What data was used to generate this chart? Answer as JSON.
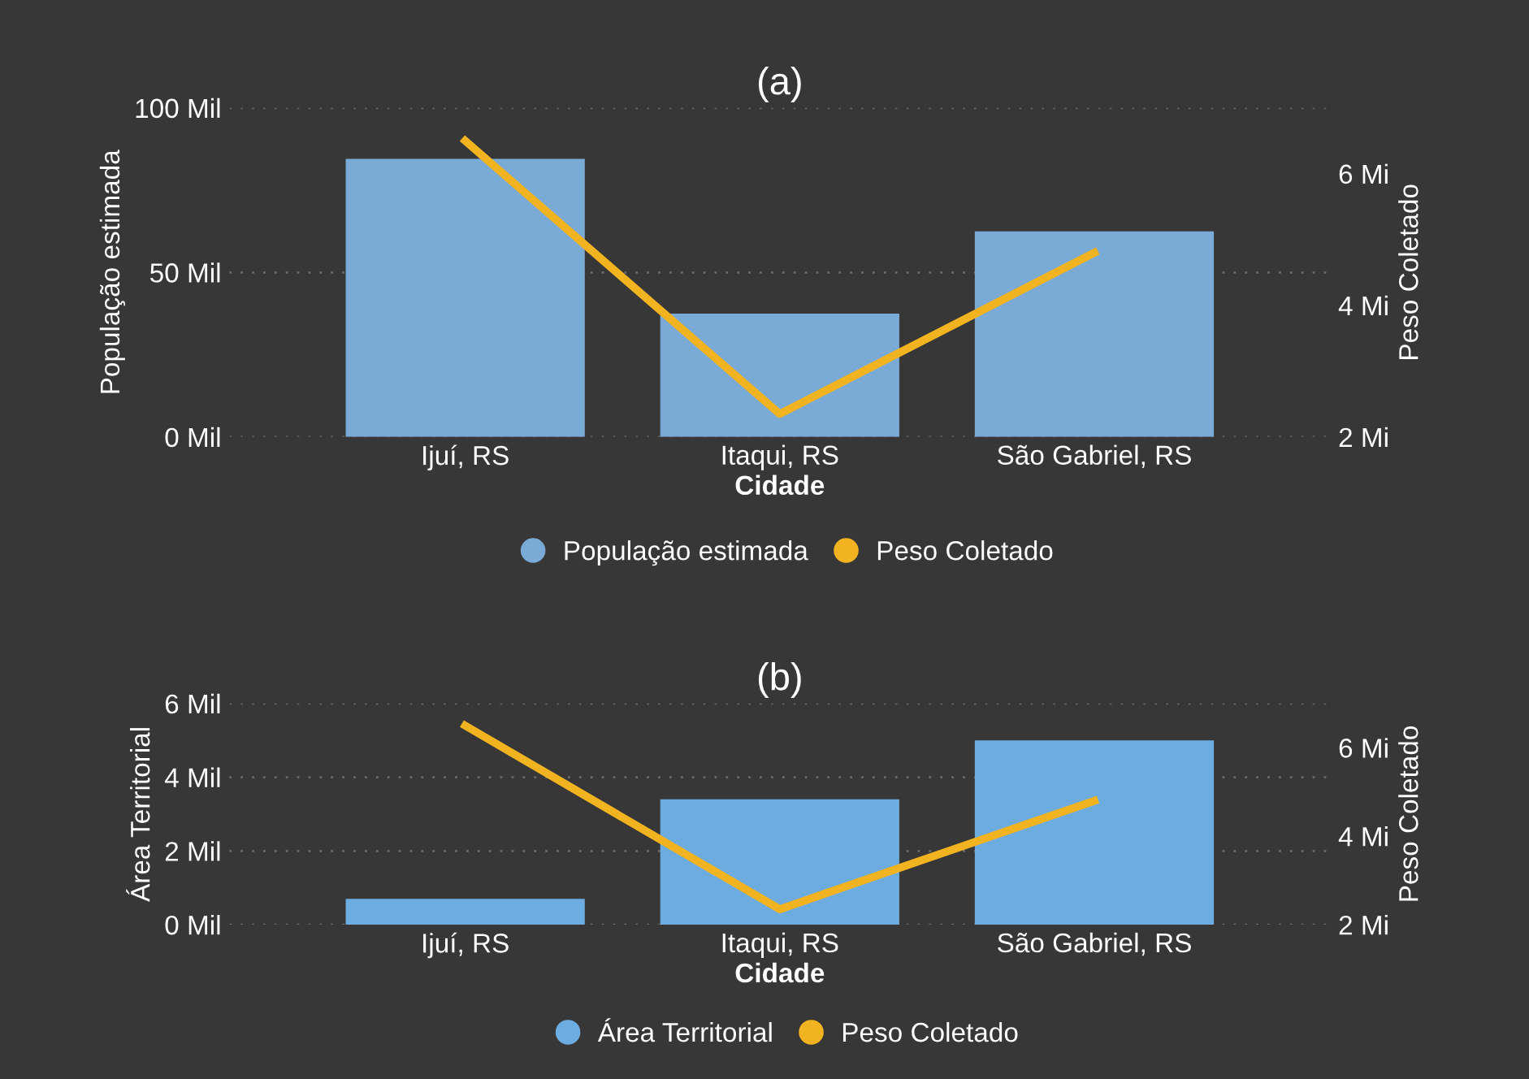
{
  "chart_data": [
    {
      "type": "bar",
      "title": "(a)",
      "xlabel": "Cidade",
      "ylabel": "População estimada",
      "y2label": "Peso Coletado",
      "categories": [
        "Ijuí, RS",
        "Itaqui, RS",
        "São Gabriel, RS"
      ],
      "series": [
        {
          "name": "População estimada",
          "color": "#7aaad6",
          "values": [
            84.5,
            37.5,
            62.5
          ]
        },
        {
          "name": "Peso Coletado",
          "type": "line",
          "axis": "y2",
          "color": "#f2b320",
          "values": [
            6.5,
            2.35,
            4.8
          ]
        }
      ],
      "ylim": [
        0,
        100
      ],
      "yticks": [
        {
          "value": 0,
          "label": "0 Mil"
        },
        {
          "value": 50,
          "label": "50 Mil"
        },
        {
          "value": 100,
          "label": "100 Mil"
        }
      ],
      "y2lim": [
        2,
        7
      ],
      "y2ticks": [
        {
          "value": 2,
          "label": "2 Mi"
        },
        {
          "value": 4,
          "label": "4 Mi"
        },
        {
          "value": 6,
          "label": "6 Mi"
        }
      ],
      "grid": "y",
      "legend": "bottom"
    },
    {
      "type": "bar",
      "title": "(b)",
      "xlabel": "Cidade",
      "ylabel": "Área Territorial",
      "y2label": "Peso Coletado",
      "categories": [
        "Ijuí, RS",
        "Itaqui, RS",
        "São Gabriel, RS"
      ],
      "series": [
        {
          "name": "Área Territorial",
          "color": "#6cace0",
          "values": [
            0.7,
            3.4,
            5.0
          ]
        },
        {
          "name": "Peso Coletado",
          "type": "line",
          "axis": "y2",
          "color": "#f2b320",
          "values": [
            6.5,
            2.35,
            4.8
          ]
        }
      ],
      "ylim": [
        0,
        6
      ],
      "yticks": [
        {
          "value": 0,
          "label": "0 Mil"
        },
        {
          "value": 2,
          "label": "2 Mil"
        },
        {
          "value": 4,
          "label": "4 Mil"
        },
        {
          "value": 6,
          "label": "6 Mil"
        }
      ],
      "y2lim": [
        2,
        7
      ],
      "y2ticks": [
        {
          "value": 2,
          "label": "2 Mi"
        },
        {
          "value": 4,
          "label": "4 Mi"
        },
        {
          "value": 6,
          "label": "6 Mi"
        }
      ],
      "grid": "y",
      "legend": "bottom"
    }
  ]
}
